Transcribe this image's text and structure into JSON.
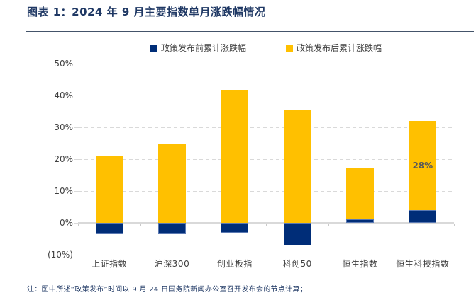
{
  "title": "图表 1：2024 年 9 月主要指数单月涨跌幅情况",
  "note": "注：图中所述“政策发布”时间以 9 月 24 日国务院新闻办公室召开发布会的节点计算；",
  "legend": [
    {
      "label": "政策发布前累计涨跌幅",
      "color": "#002D78"
    },
    {
      "label": "政策发布后累计涨跌幅",
      "color": "#FFC000"
    }
  ],
  "colors": {
    "pre_bar": "#002D78",
    "pre_bar_border": "#5B79B2",
    "post_bar": "#FFC000",
    "title_navy": "#1F3864",
    "gridline": "#D9D9D9",
    "axis_text": "#404040",
    "data_label": "#595959"
  },
  "chart_data": {
    "type": "bar",
    "stacked": true,
    "title": "2024 年 9 月主要指数单月涨跌幅情况",
    "xlabel": "",
    "ylabel": "",
    "categories": [
      "上证指数",
      "沪深300",
      "创业板指",
      "科创50",
      "恒生指数",
      "恒生科技指数"
    ],
    "series": [
      {
        "name": "政策发布前累计涨跌幅",
        "color": "#002D78",
        "values": [
          -3.5,
          -3.5,
          -3.2,
          -7.0,
          1.1,
          3.9
        ]
      },
      {
        "name": "政策发布后累计涨跌幅",
        "color": "#FFC000",
        "values": [
          21.2,
          24.8,
          41.8,
          35.3,
          16.0,
          28.0
        ],
        "labels": [
          null,
          null,
          null,
          null,
          null,
          "28%"
        ]
      }
    ],
    "ylim": [
      -10,
      50
    ],
    "yticks": [
      {
        "value": 50,
        "label": "50%"
      },
      {
        "value": 40,
        "label": "40%"
      },
      {
        "value": 30,
        "label": "30%"
      },
      {
        "value": 20,
        "label": "20%"
      },
      {
        "value": 10,
        "label": "10%"
      },
      {
        "value": 0,
        "label": "0%"
      },
      {
        "value": -10,
        "label": "(10%)"
      }
    ],
    "grid": "horizontal-dashed",
    "legend_position": "top-center"
  }
}
